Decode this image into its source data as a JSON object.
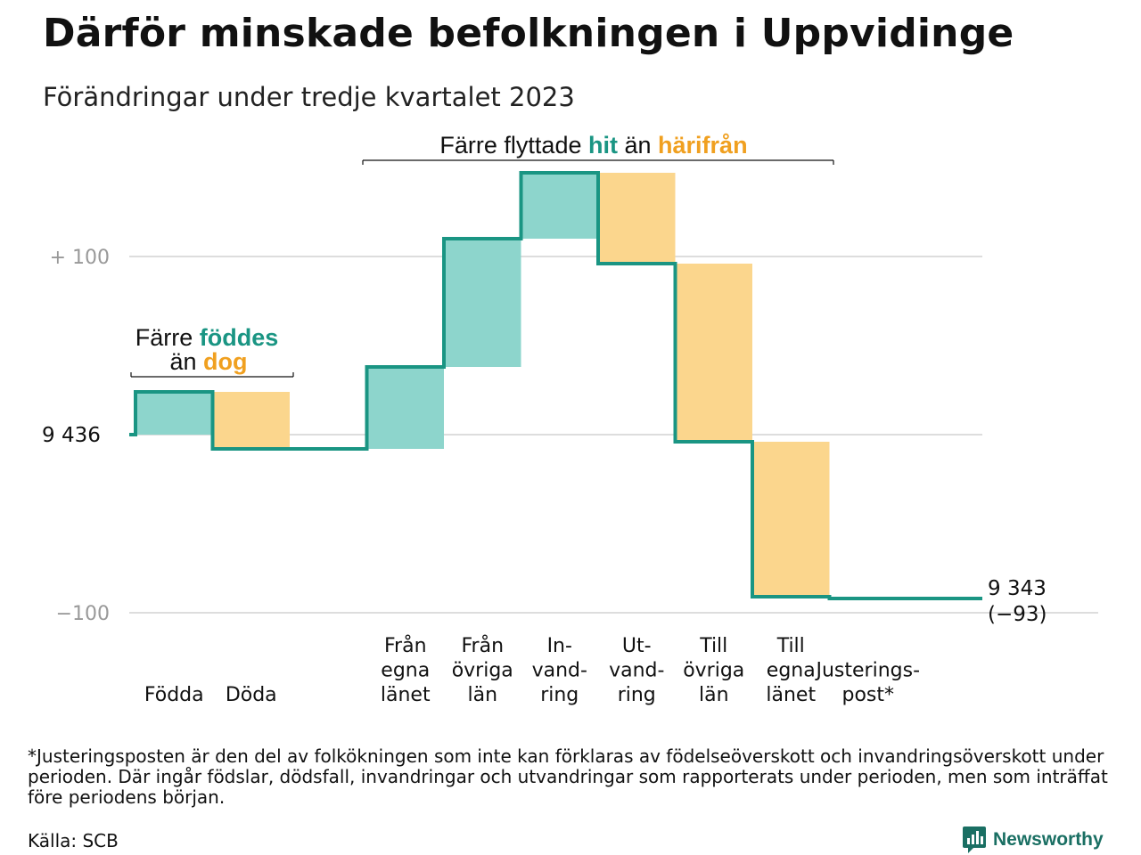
{
  "title": "Därför minskade befolkningen i Uppvidinge",
  "subtitle": "Förändringar under tredje kvartalet 2023",
  "colors": {
    "increase": "#8dd5cc",
    "decrease": "#fbd68d",
    "line": "#1a9583",
    "accent_inc": "#1a9583",
    "accent_dec": "#f0a020",
    "grid": "#dddddd"
  },
  "chart_data": {
    "type": "waterfall",
    "start_value": 9436,
    "start_label": "9  436",
    "end_value": 9343,
    "end_label": "9 343",
    "end_change_label": "(−93)",
    "y_ticks": [
      {
        "value": 100,
        "label": "+  100"
      },
      {
        "value": -100,
        "label": "−100"
      }
    ],
    "ylim": [
      -100,
      150
    ],
    "steps": [
      {
        "key": "fodda",
        "label": [
          "Födda"
        ],
        "change": 24,
        "kind": "increase"
      },
      {
        "key": "doda",
        "label": [
          "Döda"
        ],
        "change": -32,
        "kind": "decrease"
      },
      {
        "key": "gap",
        "label": [],
        "change": 0,
        "kind": "none"
      },
      {
        "key": "fran_egna",
        "label": [
          "Från",
          "egna",
          "länet"
        ],
        "change": 46,
        "kind": "increase"
      },
      {
        "key": "fran_ovriga",
        "label": [
          "Från",
          "övriga",
          "län"
        ],
        "change": 72,
        "kind": "increase"
      },
      {
        "key": "invandring",
        "label": [
          "In-",
          "vand-",
          "ring"
        ],
        "change": 37,
        "kind": "increase"
      },
      {
        "key": "utvandring",
        "label": [
          "Ut-",
          "vand-",
          "ring"
        ],
        "change": -51,
        "kind": "decrease"
      },
      {
        "key": "till_ovriga",
        "label": [
          "Till",
          "övriga",
          "län"
        ],
        "change": -100,
        "kind": "decrease"
      },
      {
        "key": "till_egna",
        "label": [
          "Till",
          "egna",
          "länet"
        ],
        "change": -87,
        "kind": "decrease"
      },
      {
        "key": "justering",
        "label": [
          "Justerings-",
          "post*"
        ],
        "change": -1,
        "kind": "adjust"
      }
    ],
    "annotations": [
      {
        "key": "births",
        "parts": [
          {
            "text": "Färre ",
            "style": "plain"
          },
          {
            "text": "föddes",
            "style": "inc"
          }
        ],
        "line2": [
          {
            "text": "än ",
            "style": "plain"
          },
          {
            "text": "dog",
            "style": "dec"
          }
        ]
      },
      {
        "key": "moves",
        "parts": [
          {
            "text": "Färre flyttade ",
            "style": "plain"
          },
          {
            "text": "hit",
            "style": "inc"
          },
          {
            "text": " än ",
            "style": "plain"
          },
          {
            "text": "härifrån",
            "style": "dec"
          }
        ]
      }
    ]
  },
  "footnote": "*Justeringsposten är den del av folkökningen som inte kan förklaras av födelseöverskott och invandringsöverskott under perioden. Där ingår födslar, dödsfall, invandringar och utvandringar som rapporterats under perioden, men som inträffat före periodens början.",
  "source": "Källa: SCB",
  "brand": "Newsworthy"
}
